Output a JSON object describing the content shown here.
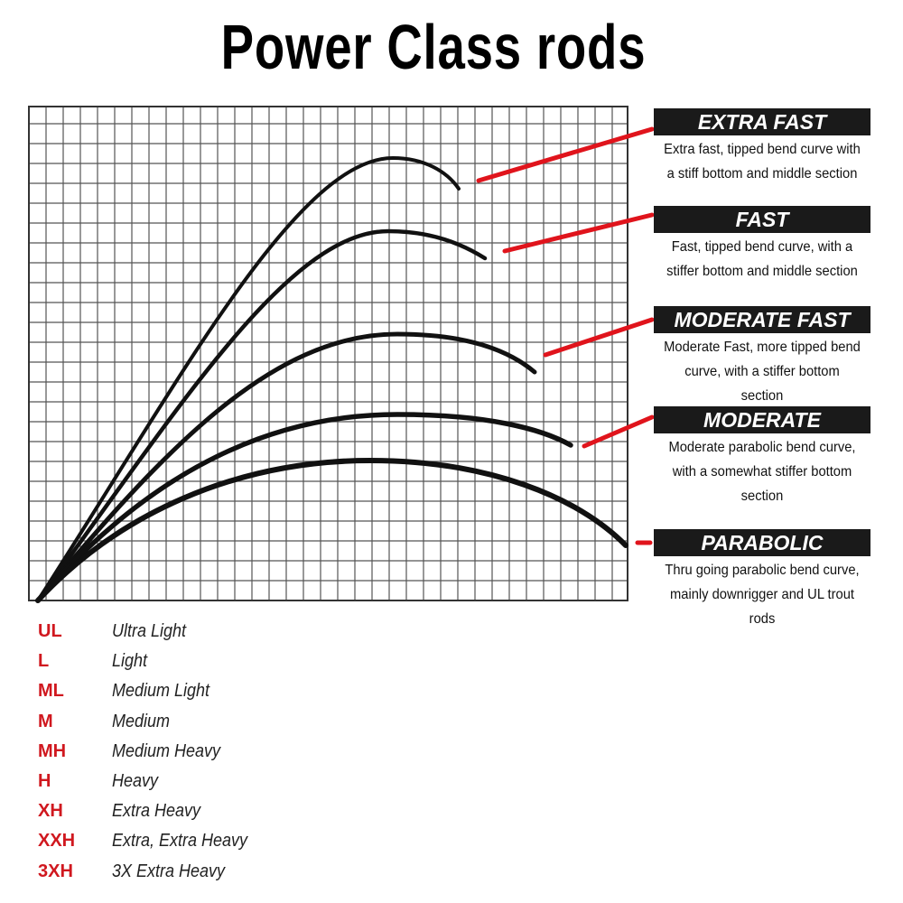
{
  "title": "Power Class rods",
  "accent_red": "#d0181f",
  "actions": [
    {
      "name": "EXTRA FAST",
      "desc": "Extra fast, tipped bend curve with a stiff bottom and middle section"
    },
    {
      "name": "FAST",
      "desc": "Fast, tipped bend curve, with a stiffer bottom and middle section"
    },
    {
      "name": "MODERATE FAST",
      "desc": "Moderate Fast, more tipped bend curve, with a stiffer bottom section"
    },
    {
      "name": "MODERATE",
      "desc": "Moderate parabolic bend curve, with a somewhat stiffer bottom section"
    },
    {
      "name": "PARABOLIC",
      "desc": "Thru going parabolic bend curve, mainly downrigger and UL trout rods"
    }
  ],
  "power_classes": [
    {
      "abbr": "UL",
      "name": "Ultra Light"
    },
    {
      "abbr": "L",
      "name": "Light"
    },
    {
      "abbr": "ML",
      "name": "Medium Light"
    },
    {
      "abbr": "M",
      "name": "Medium"
    },
    {
      "abbr": "MH",
      "name": "Medium Heavy"
    },
    {
      "abbr": "H",
      "name": "Heavy"
    },
    {
      "abbr": "XH",
      "name": "Extra Heavy"
    },
    {
      "abbr": "XXH",
      "name": "Extra, Extra Heavy"
    },
    {
      "abbr": "3XH",
      "name": "3X Extra Heavy"
    }
  ]
}
